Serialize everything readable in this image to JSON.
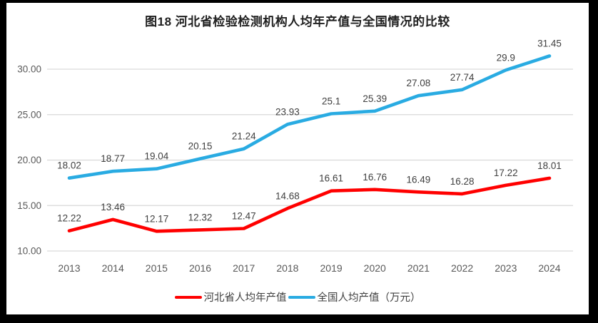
{
  "title": "图18  河北省检验检测机构人均年产值与全国情况的比较",
  "chart_data": {
    "type": "line",
    "title": "图18  河北省检验检测机构人均年产值与全国情况的比较",
    "categories": [
      "2013",
      "2014",
      "2015",
      "2016",
      "2017",
      "2018",
      "2019",
      "2020",
      "2021",
      "2022",
      "2023",
      "2024"
    ],
    "series": [
      {
        "name": "河北省人均年产值",
        "color": "#FF0000",
        "values": [
          12.22,
          13.46,
          12.17,
          12.32,
          12.47,
          14.68,
          16.61,
          16.76,
          16.49,
          16.28,
          17.22,
          18.01
        ],
        "labels": [
          "12.22",
          "13.46",
          "12.17",
          "12.32",
          "12.47",
          "14.68",
          "16.61",
          "16.76",
          "16.49",
          "16.28",
          "17.22",
          "18.01"
        ]
      },
      {
        "name": "全国人均产值（万元）",
        "color": "#29ABE2",
        "values": [
          18.02,
          18.77,
          19.04,
          20.15,
          21.24,
          23.93,
          25.1,
          25.39,
          27.08,
          27.74,
          29.9,
          31.45
        ],
        "labels": [
          "18.02",
          "18.77",
          "19.04",
          "20.15",
          "21.24",
          "23.93",
          "25.1",
          "25.39",
          "27.08",
          "27.74",
          "29.9",
          "31.45"
        ]
      }
    ],
    "yticks": [
      30,
      25,
      20,
      15,
      10
    ],
    "ytick_labels": [
      "30.00",
      "25.00",
      "20.00",
      "15.00",
      "10.00"
    ],
    "ylim": [
      10,
      32.5
    ],
    "xlabel": "",
    "ylabel": "",
    "grid": "horizontal",
    "legend_position": "bottom",
    "gridline_color": "#D9D9D9",
    "tick_label_color": "#595959",
    "data_label_color": "#404040"
  }
}
